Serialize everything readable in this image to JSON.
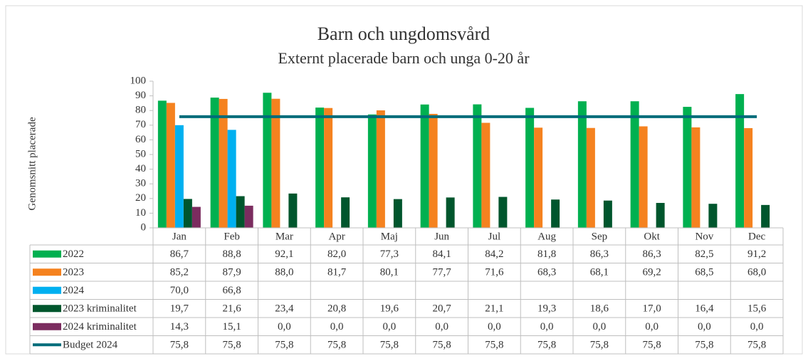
{
  "chart_data": {
    "type": "bar",
    "title": "Barn och ungdomsvård",
    "subtitle": "Externt placerade barn och unga 0-20 år",
    "y_label": "Genomsnitt placerade",
    "categories": [
      "Jan",
      "Feb",
      "Mar",
      "Apr",
      "Maj",
      "Jun",
      "Jul",
      "Aug",
      "Sep",
      "Okt",
      "Nov",
      "Dec"
    ],
    "ylim": [
      0,
      100
    ],
    "yticks": [
      0,
      10,
      20,
      30,
      40,
      50,
      60,
      70,
      80,
      90,
      100
    ],
    "grid": false,
    "series": [
      {
        "name": "2022",
        "color": "#00b050",
        "type": "bar",
        "values": [
          86.7,
          88.8,
          92.1,
          82.0,
          77.3,
          84.1,
          84.2,
          81.8,
          86.3,
          86.3,
          82.5,
          91.2
        ],
        "value_labels": [
          "86,7",
          "88,8",
          "92,1",
          "82,0",
          "77,3",
          "84,1",
          "84,2",
          "81,8",
          "86,3",
          "86,3",
          "82,5",
          "91,2"
        ]
      },
      {
        "name": "2023",
        "color": "#f5821f",
        "type": "bar",
        "values": [
          85.2,
          87.9,
          88.0,
          81.7,
          80.1,
          77.7,
          71.6,
          68.3,
          68.1,
          69.2,
          68.5,
          68.0
        ],
        "value_labels": [
          "85,2",
          "87,9",
          "88,0",
          "81,7",
          "80,1",
          "77,7",
          "71,6",
          "68,3",
          "68,1",
          "69,2",
          "68,5",
          "68,0"
        ]
      },
      {
        "name": "2024",
        "color": "#00b0f0",
        "type": "bar",
        "values": [
          70.0,
          66.8,
          null,
          null,
          null,
          null,
          null,
          null,
          null,
          null,
          null,
          null
        ],
        "value_labels": [
          "70,0",
          "66,8",
          null,
          null,
          null,
          null,
          null,
          null,
          null,
          null,
          null,
          null
        ]
      },
      {
        "name": "2023 kriminalitet",
        "color": "#00562d",
        "type": "bar",
        "values": [
          19.7,
          21.6,
          23.4,
          20.8,
          19.6,
          20.7,
          21.1,
          19.3,
          18.6,
          17.0,
          16.4,
          15.6
        ],
        "value_labels": [
          "19,7",
          "21,6",
          "23,4",
          "20,8",
          "19,6",
          "20,7",
          "21,1",
          "19,3",
          "18,6",
          "17,0",
          "16,4",
          "15,6"
        ]
      },
      {
        "name": "2024 kriminalitet",
        "color": "#7b2c5f",
        "type": "bar",
        "values": [
          14.3,
          15.1,
          0,
          0,
          0,
          0,
          0,
          0,
          0,
          0,
          0,
          0
        ],
        "value_labels": [
          "14,3",
          "15,1",
          "0,0",
          "0,0",
          "0,0",
          "0,0",
          "0,0",
          "0,0",
          "0,0",
          "0,0",
          "0,0",
          "0,0"
        ]
      },
      {
        "name": "Budget 2024",
        "color": "#006c7a",
        "type": "line",
        "values": [
          75.8,
          75.8,
          75.8,
          75.8,
          75.8,
          75.8,
          75.8,
          75.8,
          75.8,
          75.8,
          75.8,
          75.8
        ],
        "value_labels": [
          "75,8",
          "75,8",
          "75,8",
          "75,8",
          "75,8",
          "75,8",
          "75,8",
          "75,8",
          "75,8",
          "75,8",
          "75,8",
          "75,8"
        ]
      }
    ]
  }
}
